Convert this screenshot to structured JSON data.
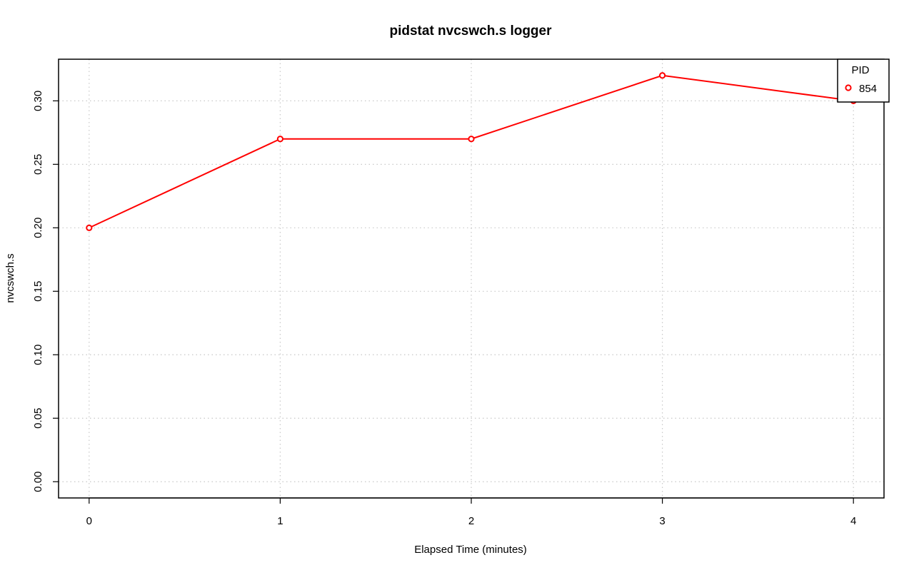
{
  "chart_data": {
    "type": "line",
    "title": "pidstat nvcswch.s logger",
    "xlabel": "Elapsed Time (minutes)",
    "ylabel": "nvcswch.s",
    "x": [
      0,
      1,
      2,
      3,
      4
    ],
    "x_ticks": [
      "0",
      "1",
      "2",
      "3",
      "4"
    ],
    "y_ticks": [
      "0.00",
      "0.05",
      "0.10",
      "0.15",
      "0.20",
      "0.25",
      "0.30"
    ],
    "y_tick_values": [
      0.0,
      0.05,
      0.1,
      0.15,
      0.2,
      0.25,
      0.3
    ],
    "xlim": [
      -0.16,
      4.16
    ],
    "ylim": [
      -0.0128,
      0.3328
    ],
    "grid": true,
    "legend": {
      "title": "PID",
      "placement": "top-right"
    },
    "series": [
      {
        "name": "854",
        "color": "#ff0000",
        "marker": "open-circle",
        "values": [
          0.2,
          0.27,
          0.27,
          0.32,
          0.3
        ]
      }
    ]
  }
}
